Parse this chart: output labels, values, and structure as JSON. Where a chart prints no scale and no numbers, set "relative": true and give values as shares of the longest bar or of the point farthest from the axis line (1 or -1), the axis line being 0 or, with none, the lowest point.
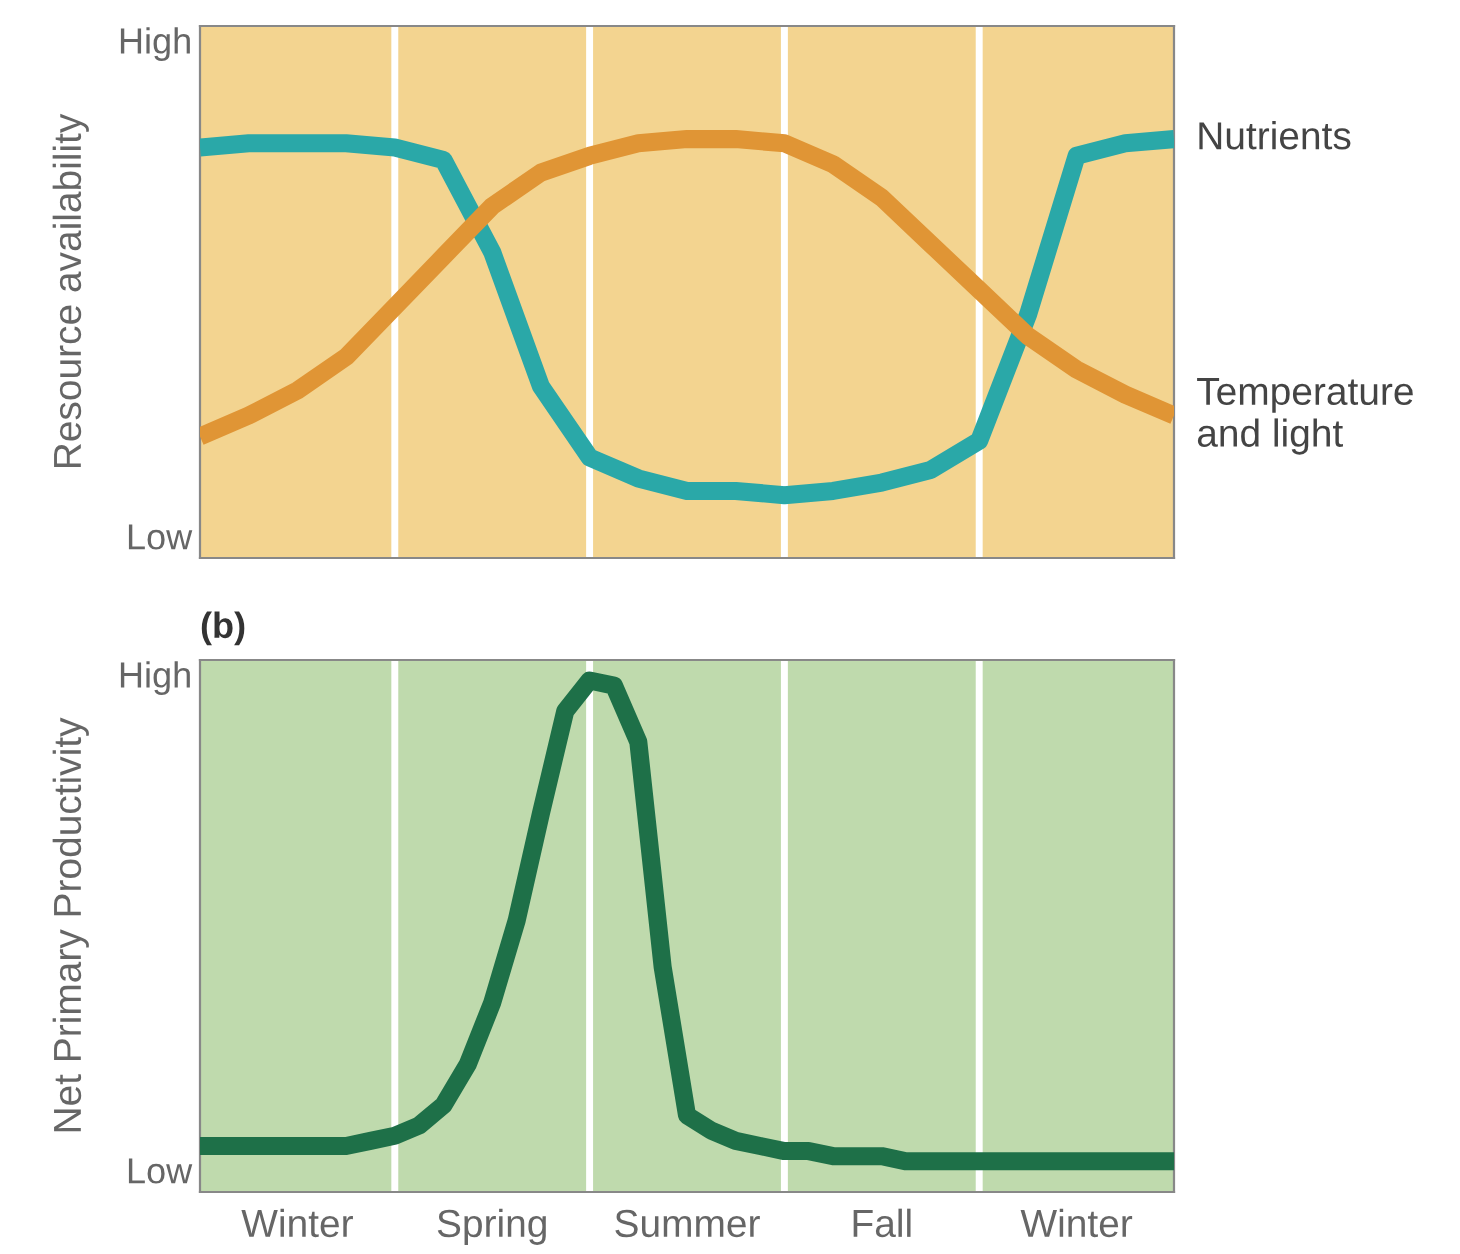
{
  "chart_data": [
    {
      "type": "line",
      "ylabel": "Resource availability",
      "relative": true,
      "tick_labels": false,
      "grid": "x",
      "legend": false,
      "line_style": "solid",
      "marker": "none",
      "categories": [
        null,
        null,
        null,
        null,
        null,
        null,
        null,
        null,
        null,
        null,
        null,
        null,
        null,
        null,
        null,
        null,
        null,
        null,
        null,
        null,
        null
      ],
      "annotations": [
        "High",
        "Low"
      ],
      "series": [
        {
          "name": "Nutrients",
          "color": "#2aa8a8",
          "values": [
            0.98,
            0.99,
            0.99,
            0.99,
            0.98,
            0.95,
            0.73,
            0.41,
            0.24,
            0.19,
            0.16,
            0.16,
            0.15,
            0.16,
            0.18,
            0.21,
            0.28,
            0.58,
            0.96,
            0.99,
            1.0
          ]
        },
        {
          "name": "Temperature\nand light",
          "color": "#e09535",
          "values": [
            0.29,
            0.34,
            0.4,
            0.48,
            0.6,
            0.72,
            0.84,
            0.92,
            0.96,
            0.99,
            1.0,
            1.0,
            0.99,
            0.94,
            0.86,
            0.75,
            0.64,
            0.53,
            0.45,
            0.39,
            0.34
          ]
        }
      ]
    },
    {
      "type": "line",
      "title": "(b)",
      "ylabel": "Net Primary Productivity",
      "relative": true,
      "tick_labels": "x",
      "grid": "x",
      "legend": false,
      "line_style": "solid",
      "marker": "none",
      "categories": [
        null,
        null,
        null,
        null,
        "Winter",
        null,
        null,
        null,
        null,
        null,
        null,
        null,
        "Spring",
        null,
        null,
        null,
        null,
        null,
        null,
        null,
        "Summer",
        null,
        null,
        null,
        null,
        null,
        null,
        null,
        "Fall",
        null,
        null,
        null,
        null,
        null,
        null,
        null,
        "Winter",
        null,
        null,
        null,
        null
      ],
      "annotations": [
        "High",
        "Low"
      ],
      "series": [
        {
          "color": "#1e7048",
          "values": [
            0.09,
            0.09,
            0.09,
            0.09,
            0.09,
            0.09,
            0.09,
            0.1,
            0.11,
            0.13,
            0.17,
            0.25,
            0.37,
            0.53,
            0.74,
            0.94,
            1.0,
            0.99,
            0.88,
            0.44,
            0.15,
            0.12,
            0.1,
            0.09,
            0.08,
            0.08,
            0.07,
            0.07,
            0.07,
            0.06,
            0.06,
            0.06,
            0.06,
            0.06,
            0.06,
            0.06,
            0.06,
            0.06,
            0.06,
            0.06,
            0.06
          ]
        }
      ]
    }
  ]
}
